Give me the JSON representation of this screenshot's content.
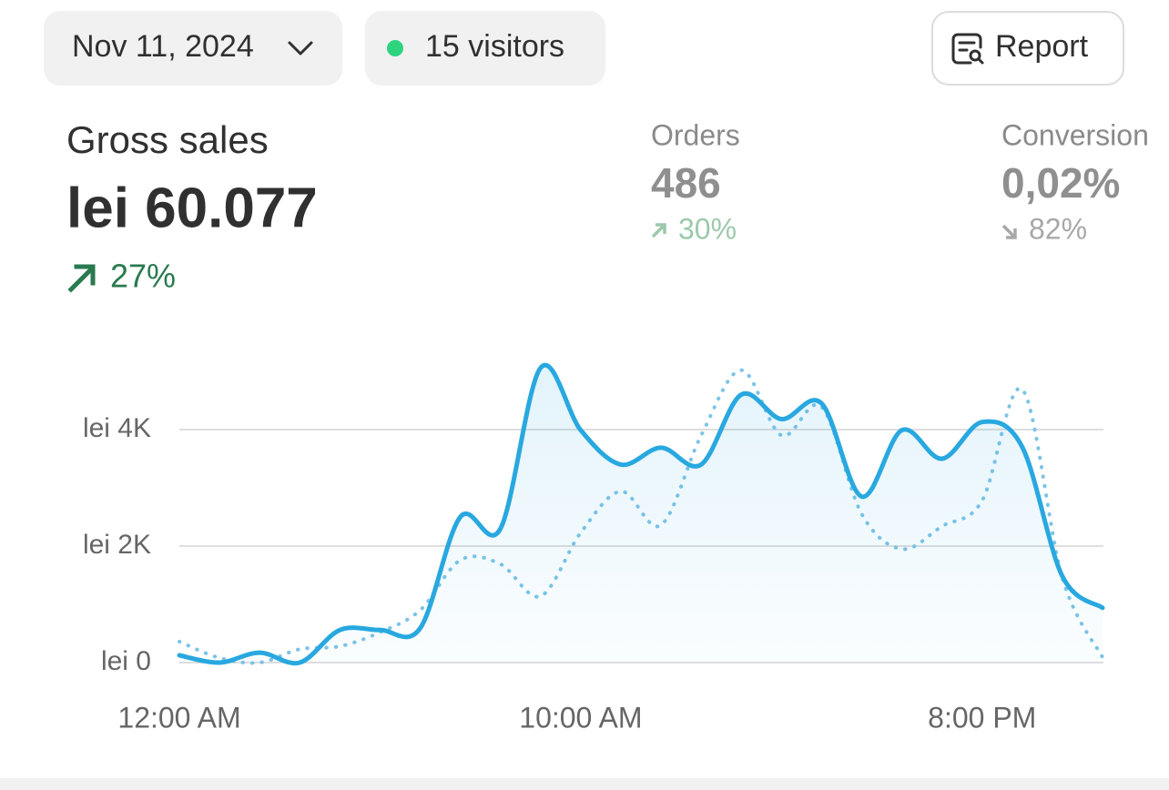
{
  "header": {
    "date": "Nov 11, 2024",
    "visitors": "15 visitors",
    "report": "Report"
  },
  "metrics": [
    {
      "label": "Gross sales",
      "value": "lei 60.077",
      "change": "27%"
    },
    {
      "label": "Orders",
      "value": "486",
      "change": "30%"
    },
    {
      "label": "Conversion",
      "value": "0,02%",
      "change": "82%"
    }
  ],
  "chart_data": {
    "type": "line",
    "x": [
      0,
      1,
      2,
      3,
      4,
      5,
      6,
      7,
      8,
      9,
      10,
      11,
      12,
      13,
      14,
      15,
      16,
      17,
      18,
      19,
      20,
      21,
      22,
      23
    ],
    "series": [
      {
        "color": "#29a8e0",
        "style": "solid",
        "area": true,
        "values": [
          125,
          0,
          170,
          0,
          560,
          560,
          590,
          2500,
          2300,
          5060,
          3990,
          3400,
          3690,
          3400,
          4600,
          4180,
          4450,
          2850,
          3990,
          3500,
          4130,
          3700,
          1480,
          940
        ]
      },
      {
        "color": "#7cc4e6",
        "style": "dotted",
        "area": false,
        "values": [
          360,
          80,
          0,
          230,
          280,
          520,
          900,
          1760,
          1690,
          1140,
          2230,
          2940,
          2360,
          3900,
          5020,
          3900,
          4390,
          2550,
          1950,
          2340,
          2780,
          4690,
          1450,
          90
        ]
      }
    ],
    "xlim": [
      0,
      23
    ],
    "ylim": [
      0,
      5200
    ],
    "xticks": [
      {
        "value": 0,
        "label": "12:00 AM"
      },
      {
        "value": 10,
        "label": "10:00 AM"
      },
      {
        "value": 20,
        "label": "8:00 PM"
      }
    ],
    "yticks": [
      {
        "value": 0,
        "label": "lei 0"
      },
      {
        "value": 2000,
        "label": "lei 2K"
      },
      {
        "value": 4000,
        "label": "lei 4K"
      }
    ],
    "grid": true
  }
}
